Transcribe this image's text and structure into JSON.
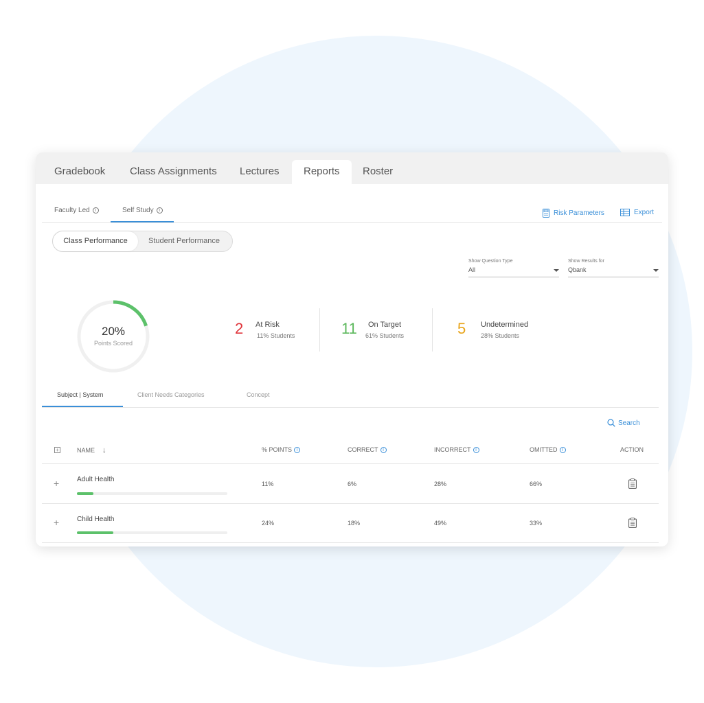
{
  "main_tabs": [
    {
      "label": "Gradebook"
    },
    {
      "label": "Class Assignments"
    },
    {
      "label": "Lectures"
    },
    {
      "label": "Reports",
      "active": true
    },
    {
      "label": "Roster"
    }
  ],
  "sub_tabs": [
    {
      "label": "Faculty Led"
    },
    {
      "label": "Self Study",
      "active": true
    }
  ],
  "actions": {
    "risk_parameters": "Risk Parameters",
    "export": "Export"
  },
  "segment": {
    "class_performance": "Class Performance",
    "student_performance": "Student Performance",
    "active": "Class Performance"
  },
  "filters": {
    "question_type": {
      "label": "Show Question Type",
      "value": "All"
    },
    "results_for": {
      "label": "Show Results for",
      "value": "Qbank"
    }
  },
  "score": {
    "percent_text": "20%",
    "percent_value": 0.2,
    "label": "Points Scored"
  },
  "stats": [
    {
      "count": "2",
      "title": "At Risk",
      "sub": "11% Students",
      "color": "#e0363c"
    },
    {
      "count": "11",
      "title": "On Target",
      "sub": "61% Students",
      "color": "#5cb85c"
    },
    {
      "count": "5",
      "title": "Undetermined",
      "sub": "28% Students",
      "color": "#e8a51c"
    }
  ],
  "category_tabs": [
    {
      "label": "Subject | System",
      "active": true
    },
    {
      "label": "Client Needs Categories"
    },
    {
      "label": "Concept"
    }
  ],
  "search_label": "Search",
  "table": {
    "headers": {
      "name": "NAME",
      "points": "% POINTS",
      "correct": "CORRECT",
      "incorrect": "INCORRECT",
      "omitted": "OMITTED",
      "action": "ACTION"
    },
    "rows": [
      {
        "name": "Adult Health",
        "progress": 0.11,
        "points": "11%",
        "correct": "6%",
        "incorrect": "28%",
        "omitted": "66%"
      },
      {
        "name": "Child Health",
        "progress": 0.24,
        "points": "24%",
        "correct": "18%",
        "incorrect": "49%",
        "omitted": "33%"
      }
    ]
  },
  "colors": {
    "accent": "#3a8fd8",
    "progress": "#5cc16a"
  }
}
